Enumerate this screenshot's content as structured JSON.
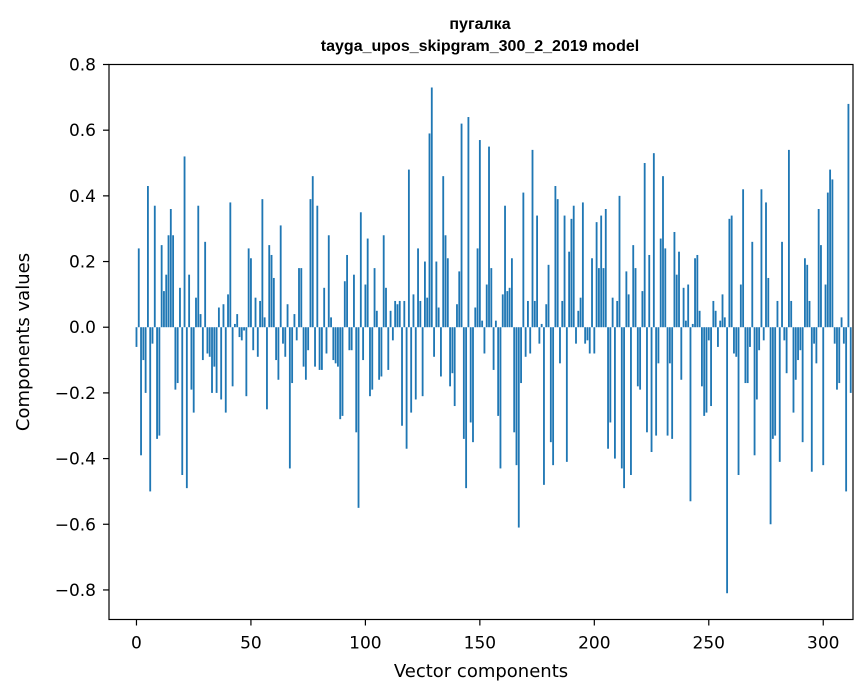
{
  "chart_data": {
    "type": "bar",
    "title_line1": "пугалка",
    "title_line2": "tayga_upos_skipgram_300_2_2019 model",
    "xlabel": "Vector components",
    "ylabel": "Components values",
    "xlim": [
      -12,
      313
    ],
    "ylim": [
      -0.89,
      0.8
    ],
    "xticks": [
      0,
      50,
      100,
      150,
      200,
      250,
      300
    ],
    "xtick_labels": [
      "0",
      "50",
      "100",
      "150",
      "200",
      "250",
      "300"
    ],
    "yticks": [
      0.8,
      0.6,
      0.4,
      0.2,
      0.0,
      -0.2,
      -0.4,
      -0.6,
      -0.8
    ],
    "ytick_labels": [
      "0.8",
      "0.6",
      "0.4",
      "0.2",
      "0.0",
      "−0.2",
      "−0.4",
      "−0.6",
      "−0.8"
    ],
    "grid": false,
    "bar_color": "#1f77b4",
    "values": [
      -0.06,
      0.24,
      -0.39,
      -0.1,
      -0.2,
      0.43,
      -0.5,
      -0.05,
      0.37,
      -0.34,
      -0.33,
      0.25,
      0.11,
      0.16,
      0.28,
      0.36,
      0.28,
      -0.19,
      -0.17,
      0.12,
      -0.45,
      0.52,
      -0.49,
      0.16,
      -0.19,
      -0.26,
      0.09,
      0.37,
      0.04,
      -0.1,
      0.26,
      -0.08,
      -0.09,
      -0.2,
      -0.12,
      -0.2,
      0.06,
      -0.22,
      0.07,
      -0.26,
      0.1,
      0.38,
      -0.18,
      0.01,
      0.04,
      -0.03,
      -0.04,
      -0.01,
      -0.21,
      0.24,
      0.21,
      -0.07,
      0.09,
      -0.09,
      0.08,
      0.39,
      0.03,
      -0.25,
      0.25,
      0.22,
      0.15,
      -0.1,
      -0.16,
      0.31,
      -0.05,
      -0.09,
      0.07,
      -0.43,
      -0.17,
      0.04,
      -0.04,
      0.18,
      0.18,
      -0.12,
      -0.16,
      -0.07,
      0.39,
      0.46,
      -0.12,
      0.37,
      -0.13,
      -0.13,
      0.12,
      -0.08,
      0.28,
      0.03,
      -0.1,
      -0.11,
      -0.12,
      -0.28,
      -0.27,
      0.14,
      0.22,
      -0.07,
      -0.07,
      0.16,
      -0.32,
      -0.55,
      0.35,
      -0.1,
      0.13,
      0.27,
      -0.21,
      -0.19,
      0.18,
      0.05,
      -0.16,
      -0.15,
      0.28,
      0.12,
      -0.13,
      0.05,
      -0.04,
      0.08,
      0.07,
      0.08,
      -0.3,
      0.08,
      -0.37,
      0.48,
      -0.26,
      0.1,
      -0.22,
      0.24,
      0.08,
      -0.21,
      0.2,
      0.09,
      0.59,
      0.73,
      -0.09,
      0.2,
      0.06,
      -0.15,
      0.46,
      0.28,
      0.21,
      -0.18,
      -0.14,
      -0.24,
      0.07,
      0.17,
      0.62,
      -0.34,
      -0.49,
      0.64,
      -0.29,
      -0.35,
      0.06,
      0.24,
      0.57,
      0.02,
      -0.08,
      0.13,
      0.55,
      0.18,
      -0.13,
      0.02,
      -0.27,
      -0.43,
      0.1,
      0.37,
      0.11,
      0.12,
      0.21,
      -0.32,
      -0.42,
      -0.61,
      -0.17,
      0.41,
      -0.09,
      0.08,
      -0.08,
      0.54,
      0.08,
      0.34,
      -0.05,
      0.01,
      -0.48,
      0.07,
      0.19,
      -0.35,
      -0.42,
      0.43,
      0.39,
      -0.11,
      0.08,
      0.34,
      -0.41,
      0.23,
      0.33,
      0.37,
      -0.05,
      0.05,
      0.09,
      0.38,
      -0.05,
      -0.04,
      -0.08,
      0.21,
      -0.08,
      0.32,
      0.18,
      0.34,
      0.18,
      0.36,
      -0.37,
      -0.29,
      0.09,
      -0.4,
      0.08,
      0.4,
      -0.43,
      -0.49,
      0.17,
      0.1,
      -0.45,
      0.25,
      0.18,
      -0.18,
      -0.19,
      0.11,
      0.5,
      -0.32,
      0.22,
      -0.38,
      0.53,
      -0.33,
      -0.11,
      0.27,
      0.46,
      0.24,
      -0.33,
      -0.11,
      -0.34,
      0.29,
      0.16,
      0.23,
      -0.16,
      0.12,
      0.02,
      0.13,
      -0.53,
      0.01,
      0.21,
      0.22,
      0.05,
      -0.18,
      -0.27,
      -0.26,
      -0.04,
      -0.24,
      0.08,
      0.05,
      -0.06,
      0.02,
      0.1,
      0.03,
      -0.81,
      0.33,
      0.34,
      -0.08,
      -0.09,
      -0.45,
      0.13,
      0.42,
      -0.17,
      -0.17,
      -0.06,
      0.26,
      -0.39,
      -0.22,
      -0.07,
      0.42,
      -0.04,
      0.38,
      0.15,
      -0.6,
      -0.34,
      -0.33,
      0.08,
      -0.41,
      0.26,
      -0.04,
      -0.14,
      0.54,
      0.08,
      -0.26,
      -0.16,
      -0.1,
      -0.07,
      -0.35,
      0.21,
      0.19,
      0.08,
      -0.44,
      -0.05,
      -0.11,
      0.36,
      0.25,
      -0.42,
      0.13,
      0.41,
      0.48,
      0.45,
      -0.05,
      -0.19,
      -0.17,
      0.03,
      -0.05,
      -0.5,
      0.68,
      -0.2
    ]
  }
}
